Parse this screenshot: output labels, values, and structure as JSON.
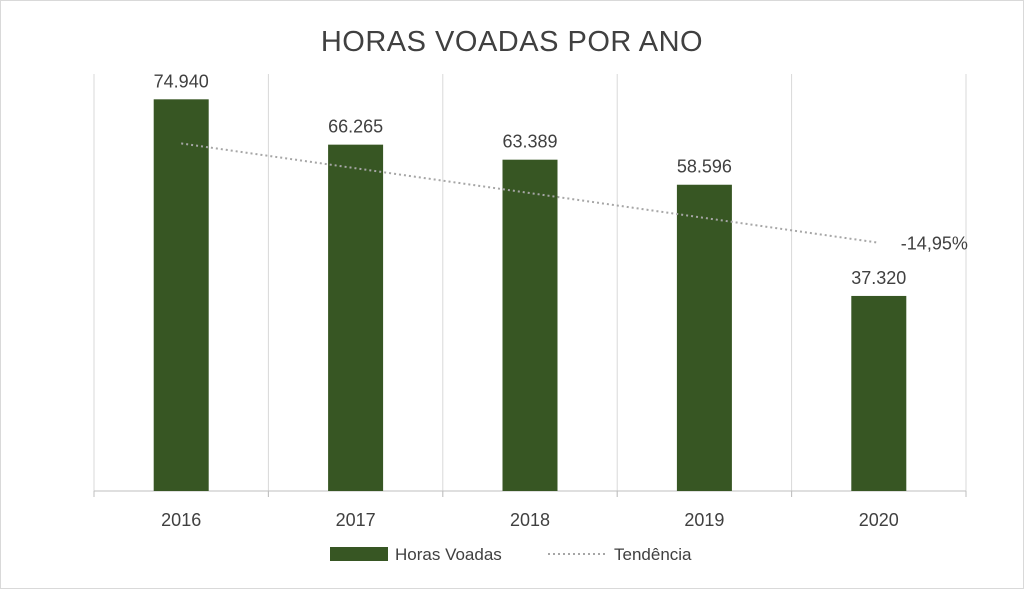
{
  "chart_data": {
    "type": "bar",
    "title": "HORAS VOADAS POR ANO",
    "xlabel": "",
    "ylabel": "",
    "categories": [
      "2016",
      "2017",
      "2018",
      "2019",
      "2020"
    ],
    "series": [
      {
        "name": "Horas Voadas",
        "values": [
          74940,
          66265,
          63389,
          58596,
          37320
        ],
        "labels": [
          "74.940",
          "66.265",
          "63.389",
          "58.596",
          "37.320"
        ],
        "color": "#375623"
      }
    ],
    "trendline": {
      "name": "Tendência",
      "type": "linear",
      "start_value": 66500,
      "end_value": 47500,
      "label": "-14,95%",
      "color": "#a6a6a6"
    },
    "ylim": [
      0,
      75000
    ],
    "grid": "vertical category dividers",
    "legend": "bottom-center"
  }
}
